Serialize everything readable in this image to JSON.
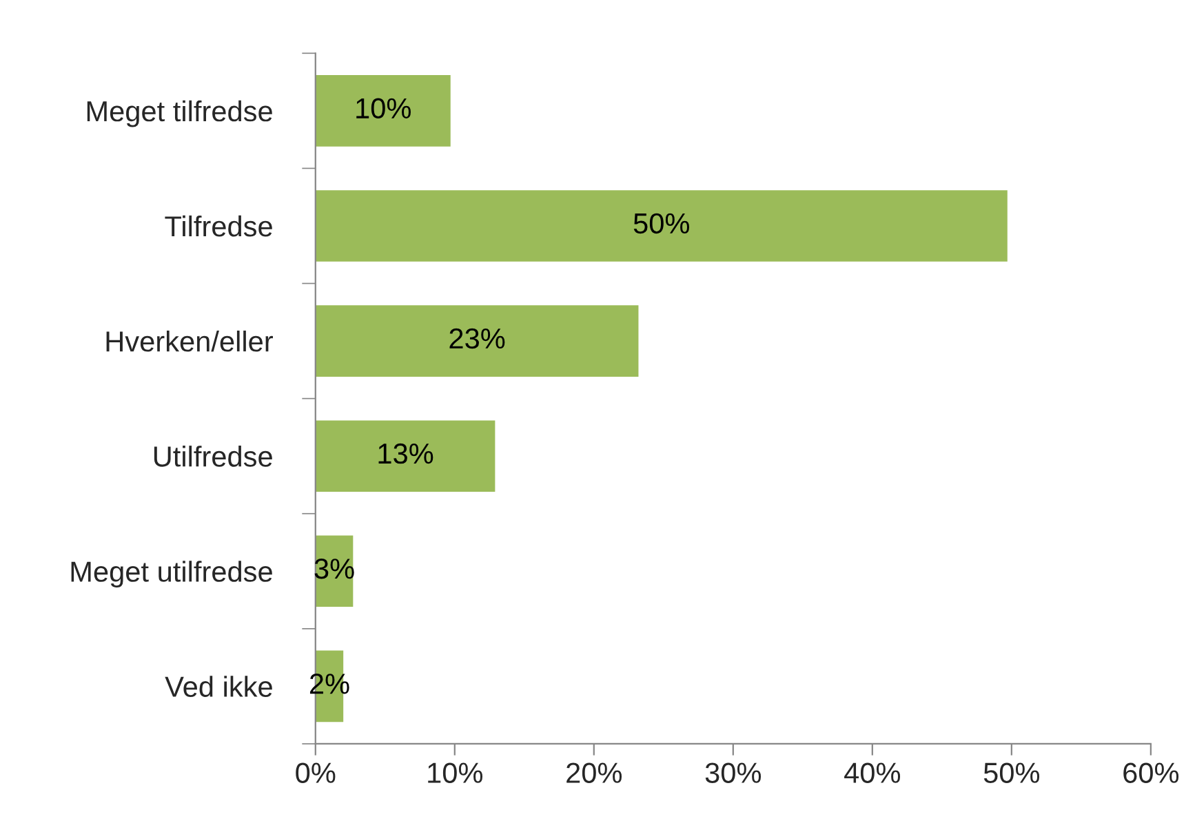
{
  "chart_data": {
    "type": "bar",
    "orientation": "horizontal",
    "categories": [
      "Meget tilfredse",
      "Tilfredse",
      "Hverken/eller",
      "Utilfredse",
      "Meget utilfredse",
      "Ved ikke"
    ],
    "values": [
      9.7,
      49.7,
      23.2,
      12.9,
      2.7,
      2.0
    ],
    "value_labels": [
      "10%",
      "50%",
      "23%",
      "13%",
      "3%",
      "2%"
    ],
    "color": "#9bbb59",
    "xlim": [
      0,
      60
    ],
    "xticks": [
      {
        "value": 0,
        "label": "0%"
      },
      {
        "value": 10,
        "label": "10%"
      },
      {
        "value": 20,
        "label": "20%"
      },
      {
        "value": 30,
        "label": "30%"
      },
      {
        "value": 40,
        "label": "40%"
      },
      {
        "value": 50,
        "label": "50%"
      },
      {
        "value": 60,
        "label": "60%"
      }
    ],
    "grid": false,
    "legend": false
  }
}
